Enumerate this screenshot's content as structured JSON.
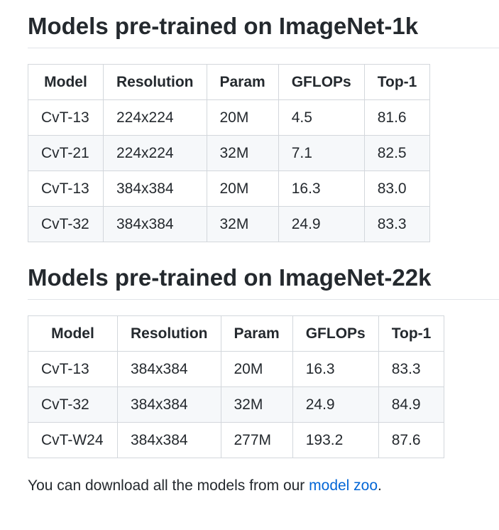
{
  "sections": [
    {
      "heading": "Models pre-trained on ImageNet-1k",
      "columns": [
        "Model",
        "Resolution",
        "Param",
        "GFLOPs",
        "Top-1"
      ],
      "rows": [
        [
          "CvT-13",
          "224x224",
          "20M",
          "4.5",
          "81.6"
        ],
        [
          "CvT-21",
          "224x224",
          "32M",
          "7.1",
          "82.5"
        ],
        [
          "CvT-13",
          "384x384",
          "20M",
          "16.3",
          "83.0"
        ],
        [
          "CvT-32",
          "384x384",
          "32M",
          "24.9",
          "83.3"
        ]
      ]
    },
    {
      "heading": "Models pre-trained on ImageNet-22k",
      "columns": [
        "Model",
        "Resolution",
        "Param",
        "GFLOPs",
        "Top-1"
      ],
      "rows": [
        [
          "CvT-13",
          "384x384",
          "20M",
          "16.3",
          "83.3"
        ],
        [
          "CvT-32",
          "384x384",
          "32M",
          "24.9",
          "84.9"
        ],
        [
          "CvT-W24",
          "384x384",
          "277M",
          "193.2",
          "87.6"
        ]
      ]
    }
  ],
  "footer": {
    "text": "You can download all the models from our ",
    "link_text": "model zoo",
    "suffix": "."
  },
  "colors": {
    "link": "#0366d6",
    "text": "#24292e",
    "border": "#d3d7dc",
    "stripe": "#f6f8fa"
  }
}
